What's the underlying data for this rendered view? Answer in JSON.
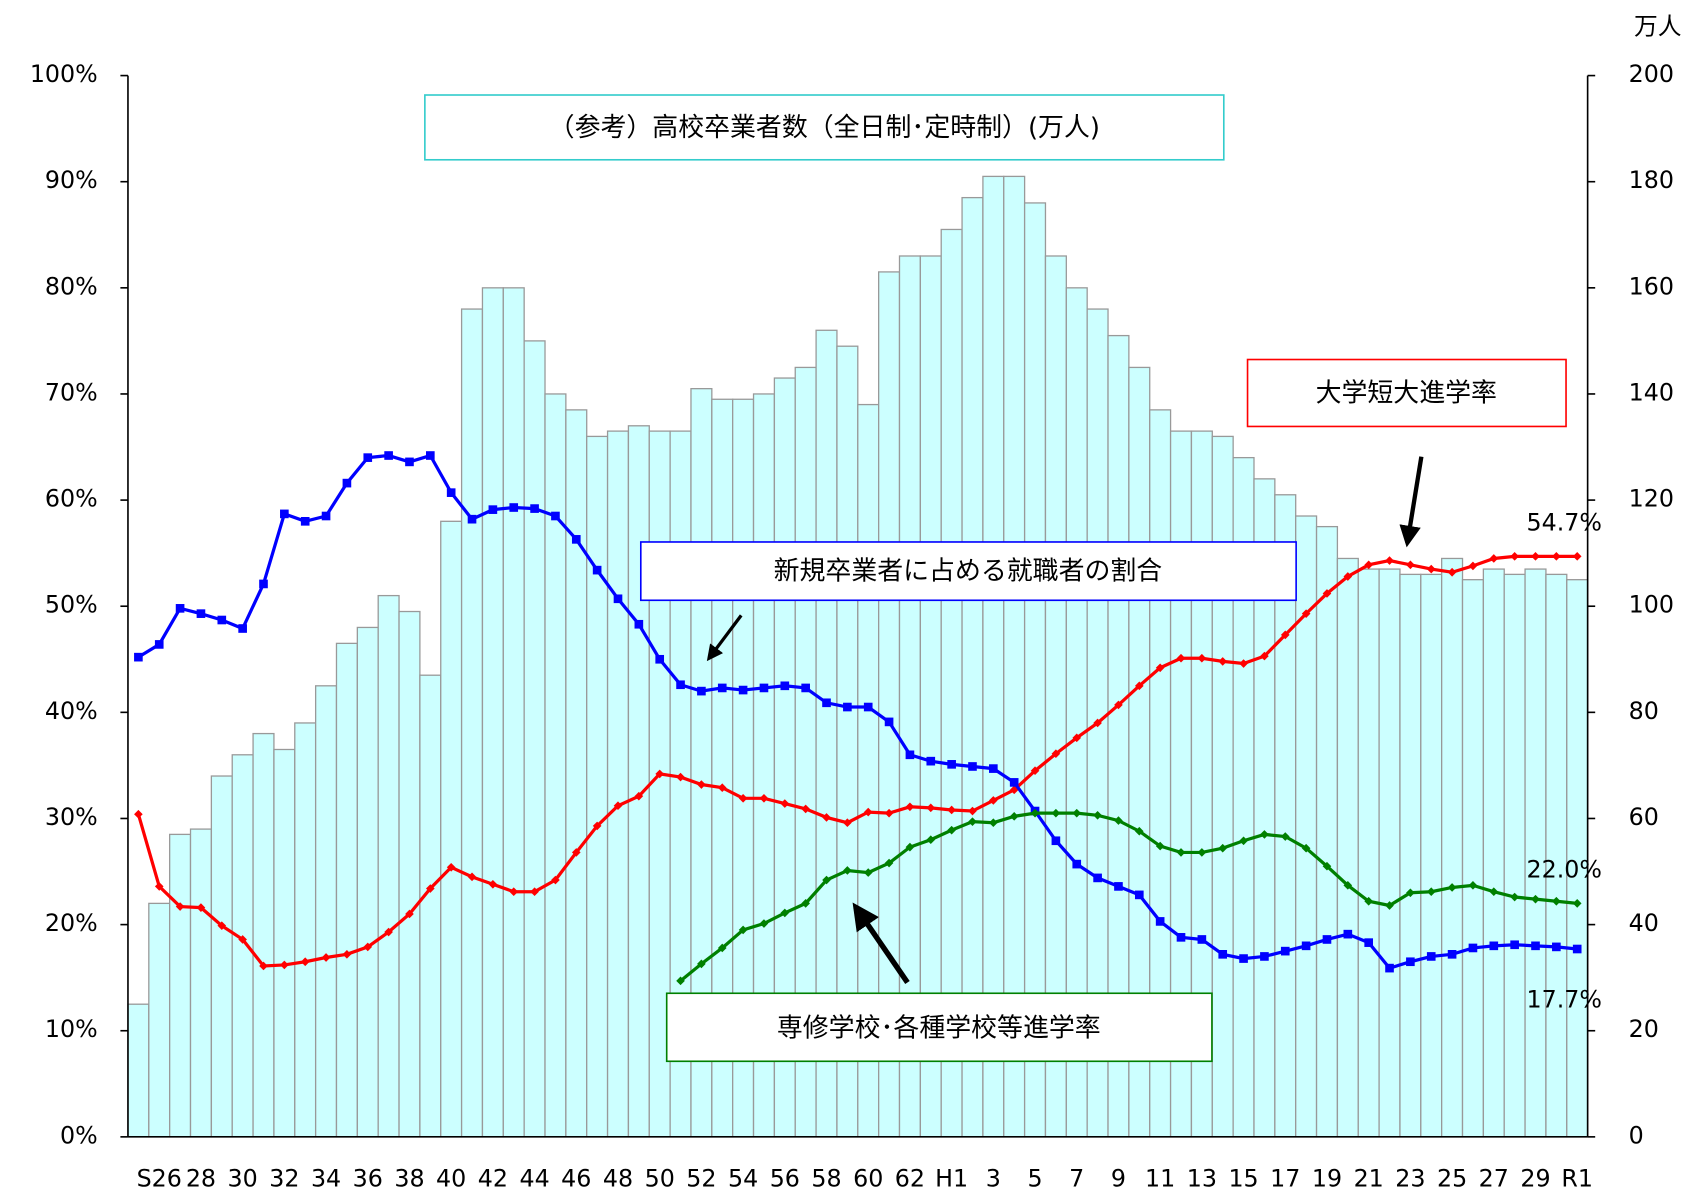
{
  "chart_data": {
    "type": "bar_line",
    "title": "（参考）高校卒業者数（全日制･定時制）(万人)",
    "y2_unit": "万人",
    "categories": [
      null,
      "S26",
      null,
      "28",
      null,
      "30",
      null,
      "32",
      null,
      "34",
      null,
      "36",
      null,
      "38",
      null,
      "40",
      null,
      "42",
      null,
      "44",
      null,
      "46",
      null,
      "48",
      null,
      "50",
      null,
      "52",
      null,
      "54",
      null,
      "56",
      null,
      "58",
      null,
      "60",
      null,
      "62",
      null,
      "H1",
      null,
      "3",
      null,
      "5",
      null,
      "7",
      null,
      "9",
      null,
      "11",
      null,
      "13",
      null,
      "15",
      null,
      "17",
      null,
      "19",
      null,
      "21",
      null,
      "23",
      null,
      "25",
      null,
      "27",
      null,
      "29",
      null,
      "R1"
    ],
    "bars": {
      "axis": "y2",
      "color": "#ccffff",
      "edge": "#999999",
      "values": [
        25,
        44,
        57,
        58,
        68,
        72,
        76,
        73,
        78,
        85,
        93,
        96,
        102,
        99,
        87,
        116,
        156,
        160,
        160,
        150,
        140,
        137,
        132,
        133,
        134,
        133,
        133,
        141,
        139,
        139,
        140,
        143,
        145,
        152,
        149,
        138,
        163,
        166,
        166,
        171,
        177,
        181,
        181,
        176,
        166,
        160,
        156,
        151,
        145,
        137,
        133,
        133,
        132,
        128,
        124,
        121,
        117,
        115,
        109,
        107,
        107,
        106,
        106,
        109,
        105,
        107,
        106,
        107,
        106,
        105
      ]
    },
    "series": [
      {
        "name": "大学短大進学率",
        "color": "#ff0000",
        "marker": "diamond",
        "end_label": "54.7%",
        "values": [
          30.4,
          23.6,
          21.7,
          21.6,
          19.9,
          18.6,
          16.1,
          16.2,
          16.5,
          16.9,
          17.2,
          17.9,
          19.3,
          21.0,
          23.4,
          25.4,
          24.5,
          23.8,
          23.1,
          23.1,
          24.2,
          26.8,
          29.3,
          31.2,
          32.1,
          34.2,
          33.9,
          33.2,
          32.9,
          31.9,
          31.9,
          31.4,
          30.9,
          30.1,
          29.6,
          30.6,
          30.5,
          31.1,
          31.0,
          30.8,
          30.7,
          31.7,
          32.7,
          34.5,
          36.1,
          37.6,
          39.0,
          40.7,
          42.5,
          44.2,
          45.1,
          45.1,
          44.8,
          44.6,
          45.3,
          47.3,
          49.3,
          51.2,
          52.8,
          53.9,
          54.3,
          53.9,
          53.5,
          53.2,
          53.8,
          54.5,
          54.7,
          54.7,
          54.7,
          54.7
        ]
      },
      {
        "name": "新規卒業者に占める就職者の割合",
        "color": "#0000ff",
        "marker": "square",
        "end_label": "17.7%",
        "values": [
          45.2,
          46.4,
          49.8,
          49.3,
          48.7,
          47.9,
          52.1,
          58.7,
          58.0,
          58.5,
          61.6,
          64.0,
          64.2,
          63.6,
          64.2,
          60.7,
          58.2,
          59.1,
          59.3,
          59.2,
          58.5,
          56.3,
          53.4,
          50.7,
          48.3,
          45.0,
          42.6,
          42.0,
          42.3,
          42.1,
          42.3,
          42.5,
          42.3,
          40.9,
          40.5,
          40.5,
          39.1,
          36.0,
          35.4,
          35.1,
          34.9,
          34.7,
          33.4,
          30.7,
          27.9,
          25.7,
          24.4,
          23.6,
          22.8,
          20.3,
          18.8,
          18.6,
          17.2,
          16.8,
          17.0,
          17.5,
          18.0,
          18.6,
          19.1,
          18.3,
          15.9,
          16.5,
          17.0,
          17.2,
          17.8,
          18.0,
          18.1,
          18.0,
          17.9,
          17.7
        ]
      },
      {
        "name": "専修学校･各種学校等進学率",
        "color": "#008000",
        "marker": "diamond",
        "end_label": "22.0%",
        "values": [
          null,
          null,
          null,
          null,
          null,
          null,
          null,
          null,
          null,
          null,
          null,
          null,
          null,
          null,
          null,
          null,
          null,
          null,
          null,
          null,
          null,
          null,
          null,
          null,
          null,
          null,
          14.7,
          16.3,
          17.8,
          19.5,
          20.1,
          21.1,
          22.0,
          24.2,
          25.1,
          24.9,
          25.8,
          27.3,
          28.0,
          28.9,
          29.7,
          29.6,
          30.2,
          30.5,
          30.5,
          30.5,
          30.3,
          29.8,
          28.8,
          27.4,
          26.8,
          26.8,
          27.2,
          27.9,
          28.5,
          28.3,
          27.2,
          25.5,
          23.7,
          22.2,
          21.8,
          23.0,
          23.1,
          23.5,
          23.7,
          23.1,
          22.6,
          22.4,
          22.2,
          22.0
        ]
      }
    ],
    "ylim": [
      0,
      100
    ],
    "yticks": [
      {
        "value": 0,
        "label": "0%"
      },
      {
        "value": 10,
        "label": "10%"
      },
      {
        "value": 20,
        "label": "20%"
      },
      {
        "value": 30,
        "label": "30%"
      },
      {
        "value": 40,
        "label": "40%"
      },
      {
        "value": 50,
        "label": "50%"
      },
      {
        "value": 60,
        "label": "60%"
      },
      {
        "value": 70,
        "label": "70%"
      },
      {
        "value": 80,
        "label": "80%"
      },
      {
        "value": 90,
        "label": "90%"
      },
      {
        "value": 100,
        "label": "100%"
      }
    ],
    "y2lim": [
      0,
      200
    ],
    "y2ticks": [
      0,
      20,
      40,
      60,
      80,
      100,
      120,
      140,
      160,
      180,
      200
    ]
  }
}
